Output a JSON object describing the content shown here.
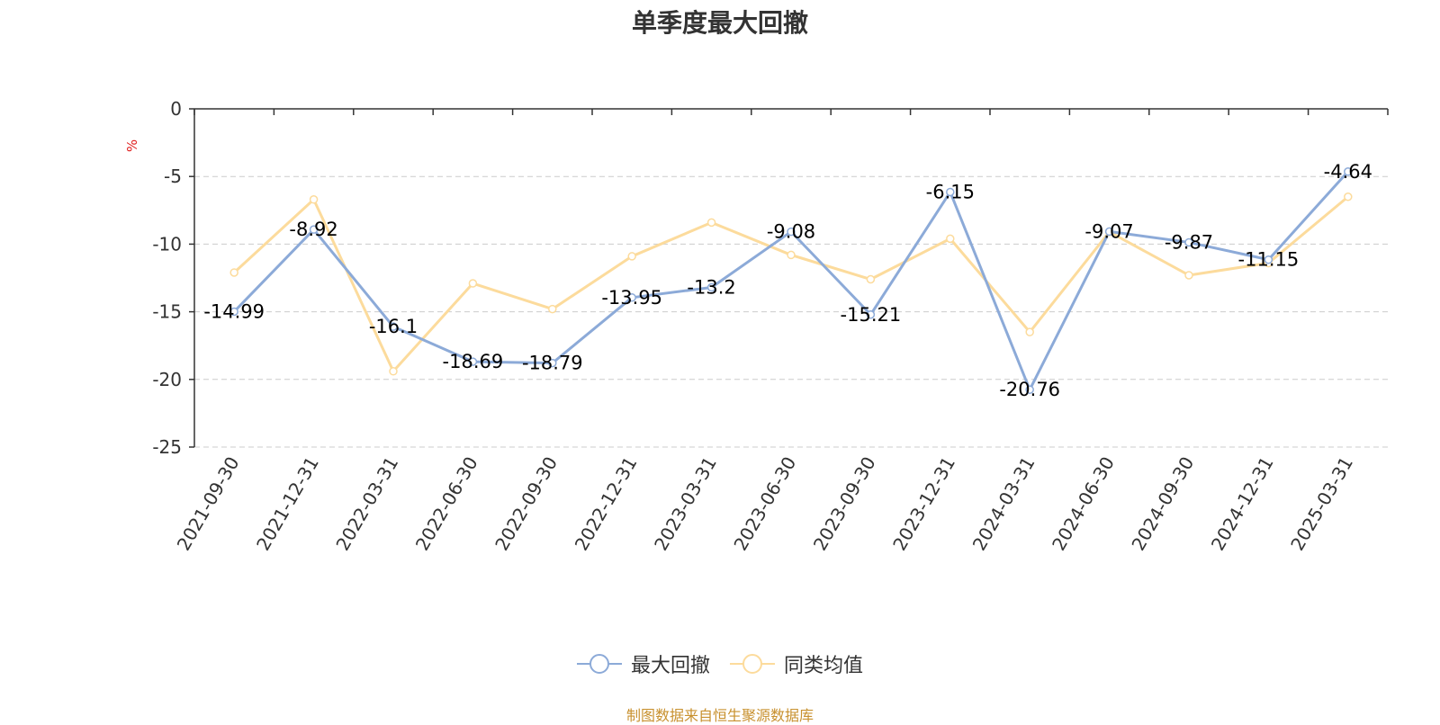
{
  "colors": {
    "series_1": "#8caad8",
    "series_2": "#fcdb9c",
    "axis": "#333333",
    "grid": "#cccccc",
    "unit": "#e02020",
    "source": "#c8912f"
  },
  "chart_data": {
    "type": "line",
    "title": "单季度最大回撤",
    "ylabel": "%",
    "xlabel": "",
    "ylim": [
      -25,
      0
    ],
    "yticks": [
      0,
      -5,
      -10,
      -15,
      -20,
      -25
    ],
    "grid": "horizontal dashed",
    "legend_position": "bottom-center",
    "categories": [
      "2021-09-30",
      "2021-12-31",
      "2022-03-31",
      "2022-06-30",
      "2022-09-30",
      "2022-12-31",
      "2023-03-31",
      "2023-06-30",
      "2023-09-30",
      "2023-12-31",
      "2024-03-31",
      "2024-06-30",
      "2024-09-30",
      "2024-12-31",
      "2025-03-31"
    ],
    "series": [
      {
        "name": "最大回撤",
        "values": [
          -14.99,
          -8.92,
          -16.1,
          -18.69,
          -18.79,
          -13.95,
          -13.2,
          -9.08,
          -15.21,
          -6.15,
          -20.76,
          -9.07,
          -9.87,
          -11.15,
          -4.64
        ],
        "labels": [
          "-14.99",
          "-8.92",
          "-16.1",
          "-18.69",
          "-18.79",
          "-13.95",
          "-13.2",
          "-9.08",
          "-15.21",
          "-6.15",
          "-20.76",
          "-9.07",
          "-9.87",
          "-11.15",
          "-4.64"
        ]
      },
      {
        "name": "同类均值",
        "values": [
          -12.1,
          -6.7,
          -19.4,
          -12.9,
          -14.8,
          -10.9,
          -8.4,
          -10.8,
          -12.6,
          -9.6,
          -16.5,
          -9.1,
          -12.3,
          -11.4,
          -6.5
        ]
      }
    ]
  },
  "source_note": "制图数据来自恒生聚源数据库"
}
